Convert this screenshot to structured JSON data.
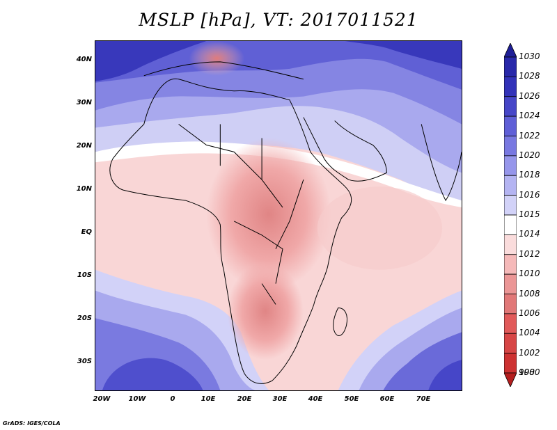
{
  "title": "MSLP [hPa], VT: 2017011521",
  "footer": "GrADS: IGES/COLA",
  "map": {
    "region": "Africa and Middle East",
    "lon_range": [
      -23,
      80
    ],
    "lat_range": [
      -36,
      45
    ],
    "field": "mean sea level pressure",
    "x_tick_labels": [
      "20W",
      "10W",
      "0",
      "10E",
      "20E",
      "30E",
      "40E",
      "50E",
      "60E",
      "70E"
    ],
    "x_tick_values": [
      -20,
      -10,
      0,
      10,
      20,
      30,
      40,
      50,
      60,
      70
    ],
    "y_tick_labels": [
      "40N",
      "30N",
      "20N",
      "10N",
      "EQ",
      "10S",
      "20S",
      "30S"
    ],
    "y_tick_values": [
      40,
      30,
      20,
      10,
      0,
      -10,
      -20,
      -30
    ]
  },
  "colorbar": {
    "labels": [
      "1030",
      "1028",
      "1026",
      "1024",
      "1022",
      "1020",
      "1018",
      "1016",
      "1015",
      "1014",
      "1012",
      "1010",
      "1008",
      "1006",
      "1004",
      "1002",
      "1000",
      "998"
    ],
    "colors": [
      "#1e1e96",
      "#2828aa",
      "#3232b9",
      "#4646c8",
      "#5f5fd7",
      "#7878e1",
      "#9696eb",
      "#b4b4f2",
      "#d2d2f8",
      "#ffffff",
      "#fadcdc",
      "#f5b9b9",
      "#eb9696",
      "#e17878",
      "#e15a5a",
      "#d74646",
      "#cd3232",
      "#b41e1e"
    ],
    "range": [
      998,
      1030
    ]
  }
}
